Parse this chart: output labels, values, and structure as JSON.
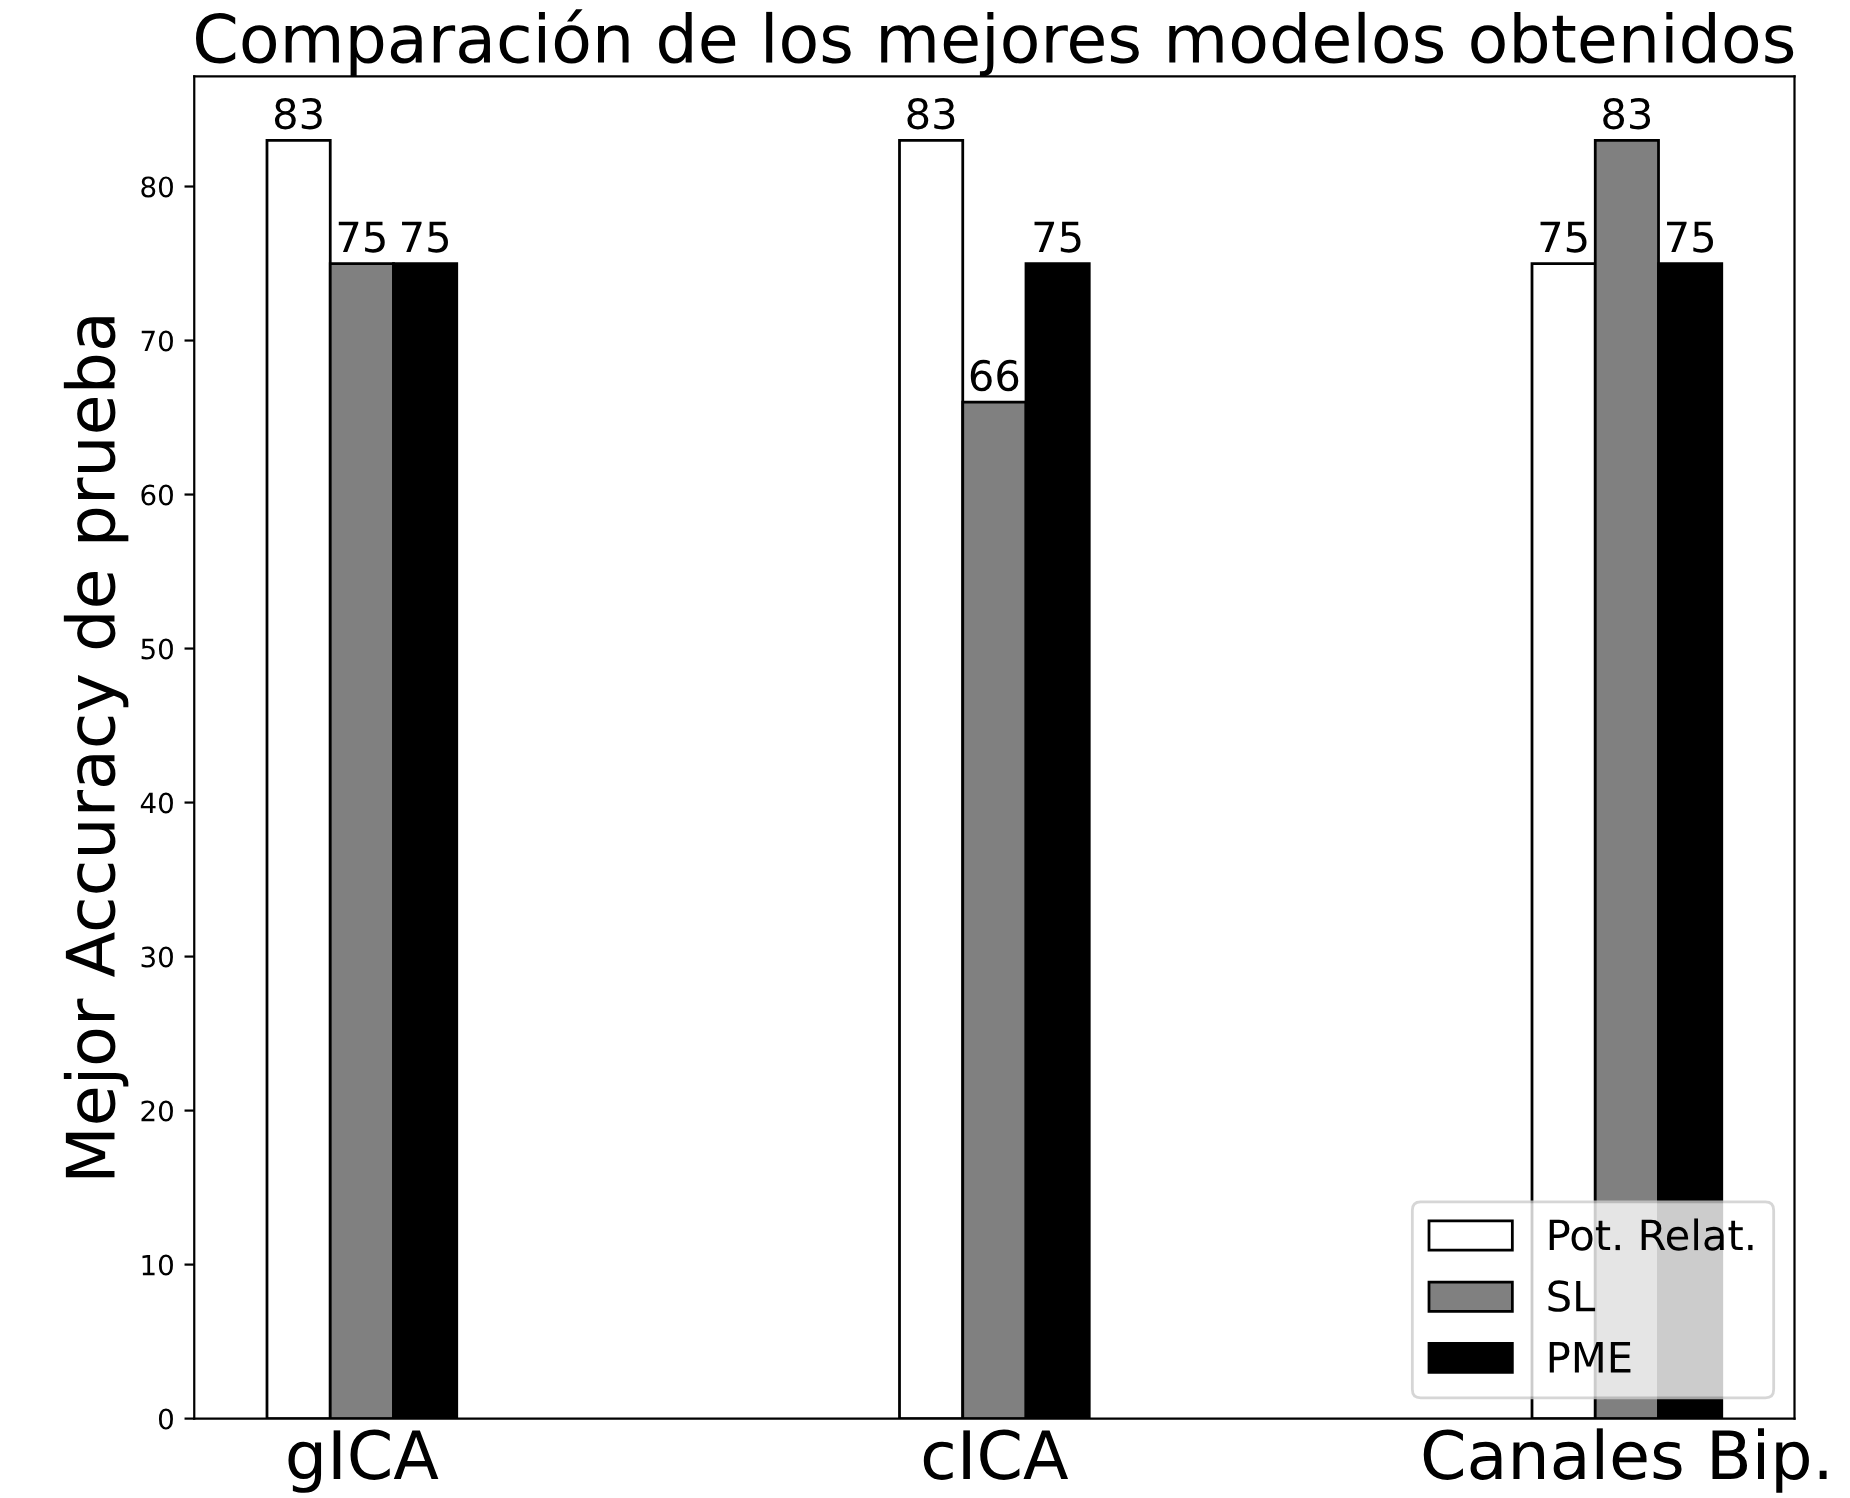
{
  "chart_data": {
    "type": "bar",
    "title": "Comparación de los mejores modelos obtenidos",
    "ylabel": "Mejor Accuracy de prueba",
    "categories": [
      "gICA",
      "cICA",
      "Canales Bip."
    ],
    "series": [
      {
        "name": "Pot. Relat.",
        "color": "#ffffff",
        "values": [
          83,
          83,
          75
        ]
      },
      {
        "name": "SL",
        "color": "#808080",
        "values": [
          75,
          66,
          83
        ]
      },
      {
        "name": "PME",
        "color": "#000000",
        "values": [
          75,
          75,
          75
        ]
      }
    ],
    "ylim": [
      0,
      87.15
    ],
    "yticks": [
      0,
      10,
      20,
      30,
      40,
      50,
      60,
      70,
      80
    ],
    "data_labels": true,
    "legend": "bottom right",
    "grid": false
  }
}
